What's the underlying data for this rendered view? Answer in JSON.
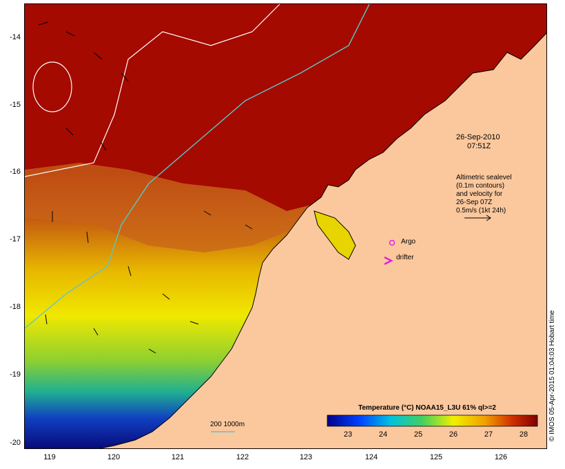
{
  "y_labels": [
    "-14",
    "-15",
    "-16",
    "-17",
    "-18",
    "-19",
    "-20"
  ],
  "x_labels": [
    "119",
    "120",
    "121",
    "122",
    "123",
    "124",
    "125",
    "126"
  ],
  "timestamp": {
    "date": "26-Sep-2010",
    "time": "07:51Z"
  },
  "altimetry_note": [
    "Altimetric sealevel",
    "(0.1m contours)",
    "and velocity for",
    "26-Sep 07Z",
    "0.5m/s (1kt 24h)"
  ],
  "markers": {
    "argo": "Argo",
    "drifter": "drifter"
  },
  "depth_label": "200  1000m",
  "legend": {
    "title": "Temperature (°C) NOAA15_L3U 61% ql>=2",
    "ticks": [
      "23",
      "24",
      "25",
      "26",
      "27",
      "28"
    ]
  },
  "credit": "© IMOS 05-Apr-2015 01:04:03 Hobart time",
  "colors": {
    "land": "#fbc89e",
    "warm": "#a40a00",
    "marker": "#e020e0",
    "contour_200m": "#5cc6c8",
    "contour_1000m": "#ffffff"
  }
}
